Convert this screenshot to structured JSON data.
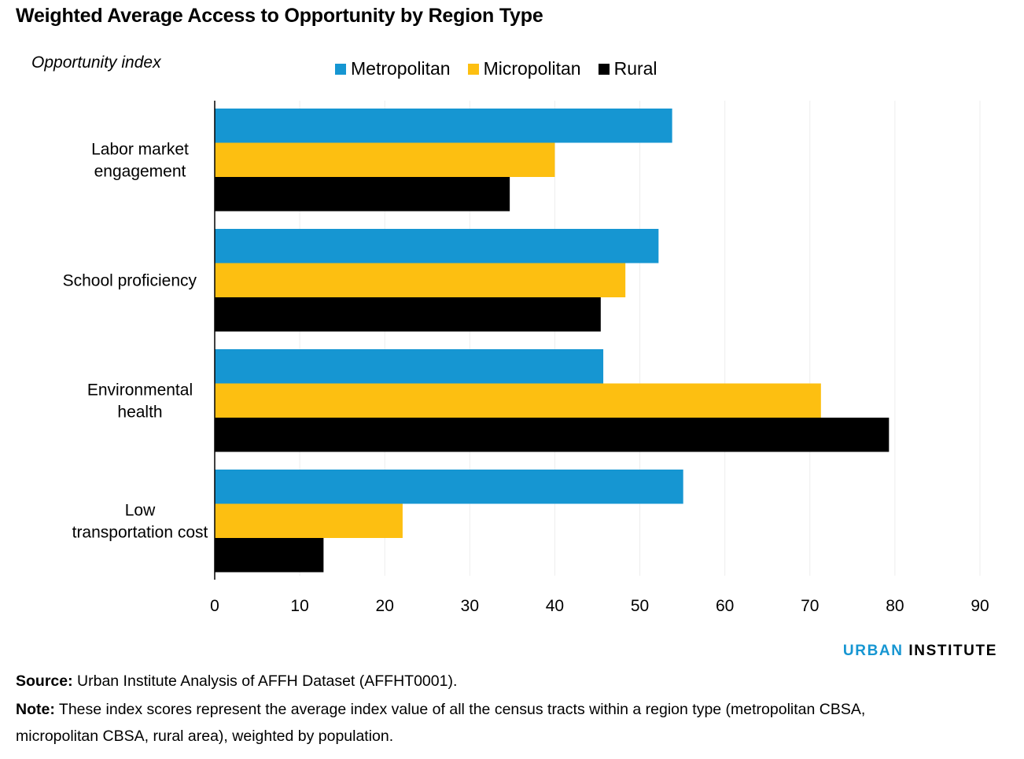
{
  "chart_data": {
    "type": "bar",
    "orientation": "horizontal",
    "title": "Weighted Average Access to Opportunity by Region Type",
    "ylabel": "Opportunity index",
    "categories": [
      [
        "Labor market",
        "engagement"
      ],
      [
        "School proficiency"
      ],
      [
        "Environmental",
        "health"
      ],
      [
        "Low",
        "transportation cost"
      ]
    ],
    "series": [
      {
        "name": "Metropolitan",
        "color": "#1696d2",
        "values": [
          53.8,
          52.2,
          45.7,
          55.1
        ]
      },
      {
        "name": "Micropolitan",
        "color": "#fdbf11",
        "values": [
          40.0,
          48.3,
          71.3,
          22.1
        ]
      },
      {
        "name": "Rural",
        "color": "#000000",
        "values": [
          34.7,
          45.4,
          79.3,
          12.8
        ]
      }
    ],
    "xlim": [
      0,
      90
    ],
    "xticks": [
      0,
      10,
      20,
      30,
      40,
      50,
      60,
      70,
      80,
      90
    ],
    "grid": true,
    "legend_position": "top"
  },
  "branding": {
    "part1": "URBAN",
    "part2": "INSTITUTE"
  },
  "footer": {
    "source_label": "Source:",
    "source_text": "Urban Institute Analysis of AFFH Dataset (AFFHT0001).",
    "note_label": "Note:",
    "note_text_line1": "These index scores represent the average index value of all the census tracts within a region type (metropolitan CBSA,",
    "note_text_line2": "micropolitan CBSA, rural area), weighted by population."
  }
}
